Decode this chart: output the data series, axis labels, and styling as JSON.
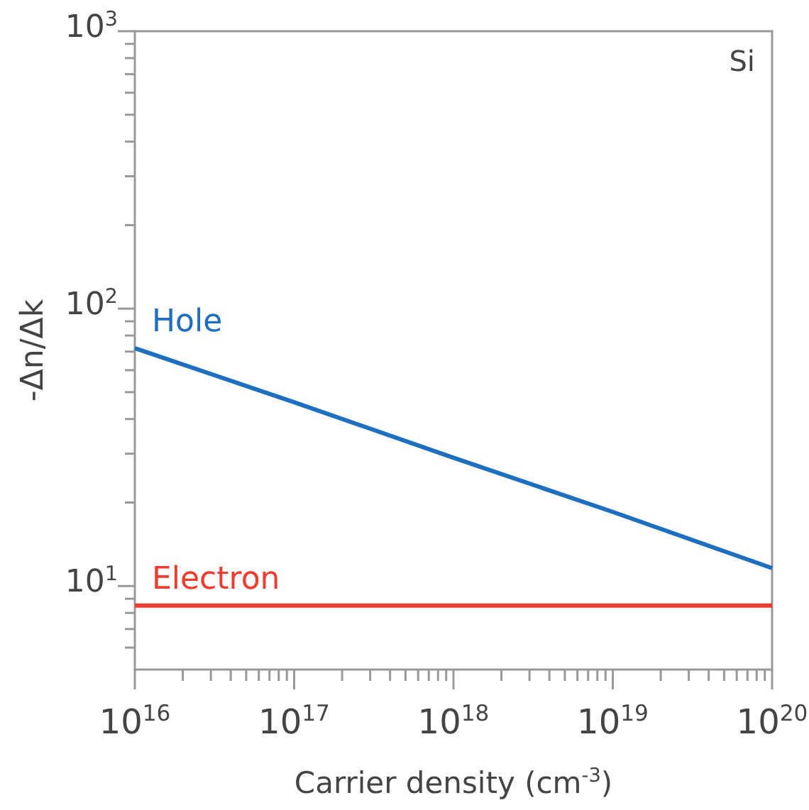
{
  "chart_data": {
    "type": "line",
    "xlabel": "Carrier density (cm$^{-3}$)",
    "ylabel": "-Δn/Δk",
    "log": "xy",
    "grid": false,
    "marker": "none",
    "line_style": "solid",
    "annotations": [
      "Si"
    ],
    "x": [
      1e+16,
      1e+17,
      1e+18,
      1e+19,
      1e+20
    ],
    "series": [
      {
        "name": "Hole",
        "color": "#1f6fc0",
        "values": [
          72,
          46,
          29,
          18.5,
          11.6
        ]
      },
      {
        "name": "Electron",
        "color": "#f03c2e",
        "values": [
          8.5,
          8.5,
          8.5,
          8.5,
          8.5
        ]
      }
    ],
    "xlim": [
      1e+16,
      1e+20
    ],
    "xticks": [
      {
        "value": 1e+16,
        "label": "10$^{16}$"
      },
      {
        "value": 2e+16,
        "label": null
      },
      {
        "value": 3e+16,
        "label": null
      },
      {
        "value": 4e+16,
        "label": null
      },
      {
        "value": 5e+16,
        "label": null
      },
      {
        "value": 6e+16,
        "label": null
      },
      {
        "value": 7e+16,
        "label": null
      },
      {
        "value": 8e+16,
        "label": null
      },
      {
        "value": 9e+16,
        "label": null
      },
      {
        "value": 1e+17,
        "label": "10$^{17}$"
      },
      {
        "value": 2e+17,
        "label": null
      },
      {
        "value": 3e+17,
        "label": null
      },
      {
        "value": 4e+17,
        "label": null
      },
      {
        "value": 5e+17,
        "label": null
      },
      {
        "value": 6e+17,
        "label": null
      },
      {
        "value": 7e+17,
        "label": null
      },
      {
        "value": 8e+17,
        "label": null
      },
      {
        "value": 9e+17,
        "label": null
      },
      {
        "value": 1e+18,
        "label": "10$^{18}$"
      },
      {
        "value": 2e+18,
        "label": null
      },
      {
        "value": 3e+18,
        "label": null
      },
      {
        "value": 4e+18,
        "label": null
      },
      {
        "value": 5e+18,
        "label": null
      },
      {
        "value": 6e+18,
        "label": null
      },
      {
        "value": 7e+18,
        "label": null
      },
      {
        "value": 8e+18,
        "label": null
      },
      {
        "value": 9e+18,
        "label": null
      },
      {
        "value": 1e+19,
        "label": "10$^{19}$"
      },
      {
        "value": 2e+19,
        "label": null
      },
      {
        "value": 3e+19,
        "label": null
      },
      {
        "value": 4e+19,
        "label": null
      },
      {
        "value": 5e+19,
        "label": null
      },
      {
        "value": 6e+19,
        "label": null
      },
      {
        "value": 7e+19,
        "label": null
      },
      {
        "value": 8e+19,
        "label": null
      },
      {
        "value": 9e+19,
        "label": null
      },
      {
        "value": 1e+20,
        "label": "10$^{20}$"
      }
    ],
    "ylim": [
      5,
      1000
    ],
    "yticks": [
      {
        "value": 6,
        "label": null
      },
      {
        "value": 7,
        "label": null
      },
      {
        "value": 8,
        "label": null
      },
      {
        "value": 9,
        "label": null
      },
      {
        "value": 10,
        "label": "10$^{1}$"
      },
      {
        "value": 20,
        "label": null
      },
      {
        "value": 30,
        "label": null
      },
      {
        "value": 40,
        "label": null
      },
      {
        "value": 50,
        "label": null
      },
      {
        "value": 60,
        "label": null
      },
      {
        "value": 70,
        "label": null
      },
      {
        "value": 80,
        "label": null
      },
      {
        "value": 90,
        "label": null
      },
      {
        "value": 100,
        "label": "10$^{2}$"
      },
      {
        "value": 200,
        "label": null
      },
      {
        "value": 300,
        "label": null
      },
      {
        "value": 400,
        "label": null
      },
      {
        "value": 500,
        "label": null
      },
      {
        "value": 600,
        "label": null
      },
      {
        "value": 700,
        "label": null
      },
      {
        "value": 800,
        "label": null
      },
      {
        "value": 900,
        "label": null
      },
      {
        "value": 1000,
        "label": "10$^{3}$"
      }
    ]
  }
}
